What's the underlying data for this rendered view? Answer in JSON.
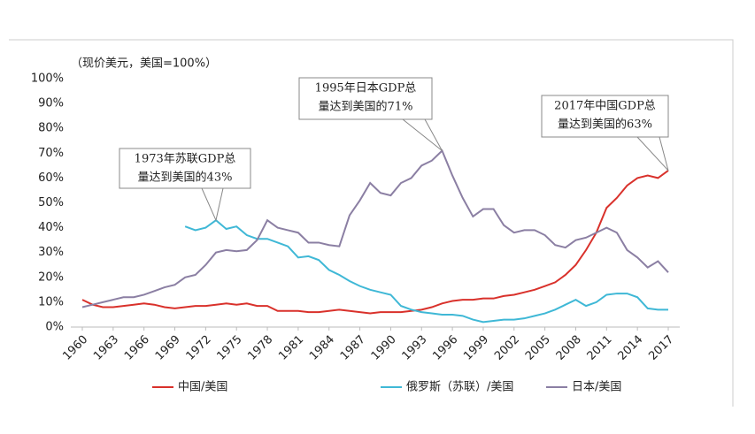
{
  "chart_data": {
    "type": "line",
    "axis_label": "（现价美元，美国=100%）",
    "x": [
      1960,
      1961,
      1962,
      1963,
      1964,
      1965,
      1966,
      1967,
      1968,
      1969,
      1970,
      1971,
      1972,
      1973,
      1974,
      1975,
      1976,
      1977,
      1978,
      1979,
      1980,
      1981,
      1982,
      1983,
      1984,
      1985,
      1986,
      1987,
      1988,
      1989,
      1990,
      1991,
      1992,
      1993,
      1994,
      1995,
      1996,
      1997,
      1998,
      1999,
      2000,
      2001,
      2002,
      2003,
      2004,
      2005,
      2006,
      2007,
      2008,
      2009,
      2010,
      2011,
      2012,
      2013,
      2014,
      2015,
      2016,
      2017
    ],
    "xlim": [
      1960,
      2017
    ],
    "xticks": [
      1960,
      1963,
      1966,
      1969,
      1972,
      1975,
      1978,
      1981,
      1984,
      1987,
      1990,
      1993,
      1996,
      1999,
      2002,
      2005,
      2008,
      2011,
      2014,
      2017
    ],
    "ylim": [
      0,
      100
    ],
    "yticks": [
      {
        "value": 0,
        "label": "0%"
      },
      {
        "value": 10,
        "label": "10%"
      },
      {
        "value": 20,
        "label": "20%"
      },
      {
        "value": 30,
        "label": "30%"
      },
      {
        "value": 40,
        "label": "40%"
      },
      {
        "value": 50,
        "label": "50%"
      },
      {
        "value": 60,
        "label": "60%"
      },
      {
        "value": 70,
        "label": "70%"
      },
      {
        "value": 80,
        "label": "80%"
      },
      {
        "value": 90,
        "label": "90%"
      },
      {
        "value": 100,
        "label": "100%"
      }
    ],
    "legend": "bottom",
    "series": [
      {
        "name": "中国/美国",
        "color": "#d9312b",
        "values": [
          11,
          9,
          8,
          8,
          8.5,
          9,
          9.5,
          9,
          8,
          7.5,
          8,
          8.5,
          8.5,
          9,
          9.5,
          9,
          9.5,
          8.5,
          8.5,
          6.5,
          6.5,
          6.5,
          6,
          6,
          6.5,
          7,
          6.5,
          6,
          5.5,
          6,
          6,
          6,
          6.5,
          7,
          8,
          9.5,
          10.5,
          11,
          11,
          11.5,
          11.5,
          12.5,
          13,
          14,
          15,
          16.5,
          18,
          21,
          25,
          31,
          38,
          48,
          52,
          57,
          60,
          61,
          60,
          63
        ]
      },
      {
        "name": "俄罗斯（苏联）/美国",
        "color": "#3fb8d6",
        "values": [
          null,
          null,
          null,
          null,
          null,
          null,
          null,
          null,
          null,
          null,
          40.5,
          39,
          40,
          43,
          39.5,
          40.5,
          37,
          35.5,
          35.5,
          34,
          32.5,
          28,
          28.5,
          27,
          23,
          21,
          18.5,
          16.5,
          15,
          14,
          13,
          8.5,
          7,
          6,
          5.5,
          5,
          5,
          4.5,
          3,
          2,
          2.5,
          3,
          3,
          3.5,
          4.5,
          5.5,
          7,
          9,
          11,
          8.5,
          10,
          13,
          13.5,
          13.5,
          12,
          7.5,
          7,
          7
        ]
      },
      {
        "name": "日本/美国",
        "color": "#8b7fa3",
        "values": [
          8,
          9,
          10,
          11,
          12,
          12,
          13,
          14.5,
          16,
          17,
          20,
          21,
          25,
          30,
          31,
          30.5,
          31,
          35,
          43,
          40,
          39,
          38,
          34,
          34,
          33,
          32.5,
          45,
          51,
          58,
          54,
          53,
          58,
          60,
          65,
          67,
          71,
          61,
          52,
          44.5,
          47.5,
          47.5,
          41,
          38,
          39,
          39,
          37,
          33,
          32,
          35,
          36,
          38,
          40,
          38,
          31,
          28,
          24,
          26.5,
          22
        ]
      }
    ],
    "annotations": [
      {
        "lines": [
          "1973年苏联GDP总",
          "量达到美国的43%"
        ]
      },
      {
        "lines": [
          "1995年日本GDP总",
          "量达到美国的71%"
        ]
      },
      {
        "lines": [
          "2017年中国GDP总",
          "量达到美国的63%"
        ]
      }
    ]
  }
}
